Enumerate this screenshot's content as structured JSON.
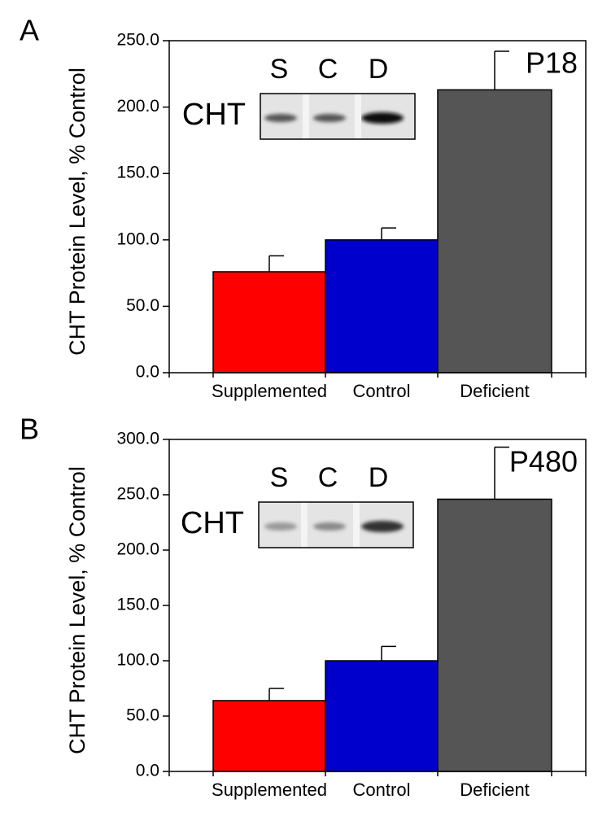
{
  "chart_data": [
    {
      "type": "bar",
      "panel_label": "A",
      "annotation": "P18",
      "blot_label": "CHT",
      "lanes": [
        "S",
        "C",
        "D"
      ],
      "ylabel": "CHT Protein Level, % Control",
      "categories": [
        "Supplemented",
        "Control",
        "Deficient"
      ],
      "values": [
        76,
        100,
        213
      ],
      "errors": [
        12,
        9,
        29
      ],
      "colors": [
        "#ff0000",
        "#0000cc",
        "#555555"
      ],
      "ylim": [
        0,
        250
      ],
      "yticks": [
        {
          "value": 0,
          "label": "0.0"
        },
        {
          "value": 50,
          "label": "50.0"
        },
        {
          "value": 100,
          "label": "100.0"
        },
        {
          "value": 150,
          "label": "150.0"
        },
        {
          "value": 200,
          "label": "200.0"
        },
        {
          "value": 250,
          "label": "250.0"
        }
      ]
    },
    {
      "type": "bar",
      "panel_label": "B",
      "annotation": "P480",
      "blot_label": "CHT",
      "lanes": [
        "S",
        "C",
        "D"
      ],
      "ylabel": "CHT Protein Level, % Control",
      "categories": [
        "Supplemented",
        "Control",
        "Deficient"
      ],
      "values": [
        64,
        100,
        246
      ],
      "errors": [
        11,
        13,
        47
      ],
      "colors": [
        "#ff0000",
        "#0000cc",
        "#555555"
      ],
      "ylim": [
        0,
        300
      ],
      "yticks": [
        {
          "value": 0,
          "label": "0.0"
        },
        {
          "value": 50,
          "label": "50.0"
        },
        {
          "value": 100,
          "label": "100.0"
        },
        {
          "value": 150,
          "label": "150.0"
        },
        {
          "value": 200,
          "label": "200.0"
        },
        {
          "value": 250,
          "label": "250.0"
        },
        {
          "value": 300,
          "label": "300.0"
        }
      ]
    }
  ]
}
